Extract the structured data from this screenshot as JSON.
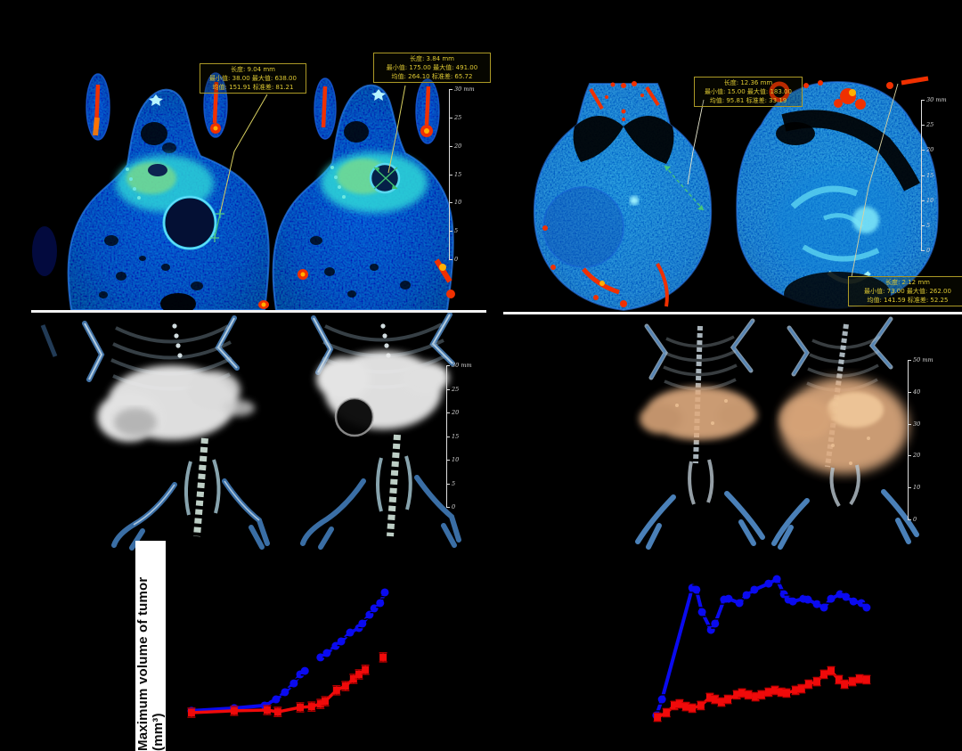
{
  "figure": {
    "background": "#000000",
    "panels": {
      "ct_left": {
        "boxes": [
          {
            "lines": [
              "长度: 9.04 mm",
              "最小值: 38.00  最大值: 638.00",
              "均值: 151.91  标准差: 81.21"
            ]
          },
          {
            "lines": [
              "长度: 3.84 mm",
              "最小值: 175.00  最大值: 491.00",
              "均值: 264.10  标准差: 65.72"
            ]
          }
        ],
        "scalebar": {
          "unit": "mm",
          "ticks": [
            "30",
            "25",
            "20",
            "15",
            "10",
            "5",
            "0"
          ]
        }
      },
      "ct_right": {
        "boxes": [
          {
            "lines": [
              "长度: 12.36 mm",
              "最小值: 15.00  最大值: 183.00",
              "均值: 95.81  标准差: 33.19"
            ]
          },
          {
            "lines": [
              "长度: 2.12 mm",
              "最小值: 73.00  最大值: 262.00",
              "均值: 141.59  标准差: 52.25"
            ]
          }
        ],
        "scalebar": {
          "unit": "mm",
          "ticks": [
            "30",
            "25",
            "20",
            "15",
            "10",
            "5",
            "0"
          ]
        }
      },
      "render3d_left": {
        "scalebar": {
          "unit": "mm",
          "ticks": [
            "30",
            "25",
            "20",
            "15",
            "10",
            "5",
            "0"
          ]
        }
      },
      "render3d_right": {
        "scalebar": {
          "unit": "mm",
          "ticks": [
            "50",
            "40",
            "30",
            "20",
            "10",
            "0"
          ]
        }
      }
    },
    "colors": {
      "series_blue": "#0a0af0",
      "series_red": "#f00a0a",
      "annotation_yellow": "#ddc832",
      "scalebar_white": "#dedede"
    }
  },
  "chart_data": [
    {
      "type": "line",
      "title": "",
      "xlabel": "",
      "ylabel": "Maximum volume of tumor (mm³)",
      "axis_tick_labels_visible": false,
      "background": "#000000",
      "legend": "none",
      "series": [
        {
          "name": "blue",
          "color": "#0a0af0",
          "marker": "circle",
          "err_color": "#000000",
          "err_pct": 2,
          "points_pct": [
            [
              6.3,
              80.4
            ],
            [
              16.4,
              79.1
            ],
            [
              23.6,
              77.8
            ],
            [
              26.3,
              74.8
            ],
            [
              28.4,
              71.3
            ],
            [
              30.5,
              67.0
            ],
            [
              32.0,
              62.6
            ],
            [
              33.1,
              60.9
            ],
            null,
            [
              36.8,
              54.3
            ],
            [
              38.3,
              52.2
            ],
            [
              40.4,
              48.7
            ],
            [
              41.7,
              46.5
            ],
            [
              43.8,
              42.2
            ],
            [
              45.9,
              40.0
            ],
            [
              46.7,
              37.8
            ],
            [
              48.4,
              33.5
            ],
            [
              49.5,
              30.4
            ],
            [
              50.9,
              27.8
            ],
            [
              52.0,
              22.6
            ]
          ]
        },
        {
          "name": "red",
          "color": "#f00a0a",
          "marker": "square",
          "err_color": "#c40000",
          "err_pct": 2.2,
          "points_pct": [
            [
              6.3,
              81.3
            ],
            [
              16.4,
              80.4
            ],
            [
              24.2,
              80.0
            ],
            [
              26.7,
              80.9
            ],
            [
              32.0,
              78.7
            ],
            [
              34.7,
              78.3
            ],
            [
              36.8,
              77.0
            ],
            [
              37.9,
              75.7
            ],
            [
              40.6,
              70.4
            ],
            [
              42.7,
              68.3
            ],
            [
              44.6,
              64.8
            ],
            [
              45.9,
              62.6
            ],
            [
              47.4,
              60.4
            ],
            null,
            [
              51.6,
              54.3
            ]
          ]
        }
      ]
    },
    {
      "type": "line",
      "title": "",
      "xlabel": "",
      "ylabel": "",
      "axis_tick_labels_visible": false,
      "background": "#000000",
      "legend": "none",
      "series": [
        {
          "name": "blue",
          "color": "#0a0af0",
          "marker": "circle",
          "err_color": "#000000",
          "err_pct": 2.2,
          "points_pct": [
            [
              18.3,
              82.6
            ],
            [
              19.8,
              74.8
            ],
            [
              27.9,
              20.4
            ],
            [
              29.0,
              21.3
            ],
            [
              30.5,
              32.2
            ],
            [
              32.9,
              40.9
            ],
            [
              34.0,
              37.8
            ],
            [
              36.4,
              26.1
            ],
            [
              37.6,
              25.7
            ],
            [
              40.5,
              27.8
            ],
            [
              42.4,
              23.9
            ],
            [
              44.5,
              21.3
            ],
            [
              48.3,
              18.3
            ],
            [
              50.5,
              16.1
            ],
            [
              52.4,
              23.5
            ],
            [
              53.6,
              26.1
            ],
            [
              54.8,
              27.0
            ],
            [
              57.6,
              25.7
            ],
            [
              58.8,
              26.1
            ],
            [
              61.2,
              28.3
            ],
            [
              63.1,
              30.0
            ],
            [
              65.0,
              25.7
            ],
            [
              67.4,
              23.5
            ],
            [
              69.0,
              24.8
            ],
            [
              71.0,
              27.0
            ],
            [
              73.1,
              27.8
            ],
            [
              74.5,
              30.0
            ]
          ]
        },
        {
          "name": "red",
          "color": "#f00a0a",
          "marker": "square",
          "err_color": "#c40000",
          "err_pct": 2,
          "points_pct": [
            [
              18.6,
              83.5
            ],
            [
              21.0,
              81.3
            ],
            [
              23.1,
              77.8
            ],
            [
              24.5,
              77.0
            ],
            [
              26.2,
              78.3
            ],
            [
              27.9,
              79.1
            ],
            [
              30.2,
              77.8
            ],
            [
              32.6,
              73.9
            ],
            [
              34.0,
              74.8
            ],
            [
              35.7,
              76.1
            ],
            [
              37.4,
              74.8
            ],
            [
              39.8,
              72.6
            ],
            [
              41.2,
              71.7
            ],
            [
              42.9,
              72.6
            ],
            [
              44.8,
              73.5
            ],
            [
              46.4,
              72.6
            ],
            [
              48.3,
              71.3
            ],
            [
              50.0,
              70.4
            ],
            [
              51.7,
              71.3
            ],
            [
              53.1,
              71.7
            ],
            [
              55.5,
              70.4
            ],
            [
              57.1,
              69.6
            ],
            [
              59.0,
              67.4
            ],
            [
              61.2,
              66.1
            ],
            [
              63.1,
              62.6
            ],
            [
              65.0,
              60.9
            ],
            [
              67.1,
              65.2
            ],
            [
              68.6,
              67.4
            ],
            [
              70.7,
              66.1
            ],
            [
              72.6,
              64.8
            ],
            [
              74.5,
              65.2
            ]
          ]
        }
      ]
    }
  ]
}
